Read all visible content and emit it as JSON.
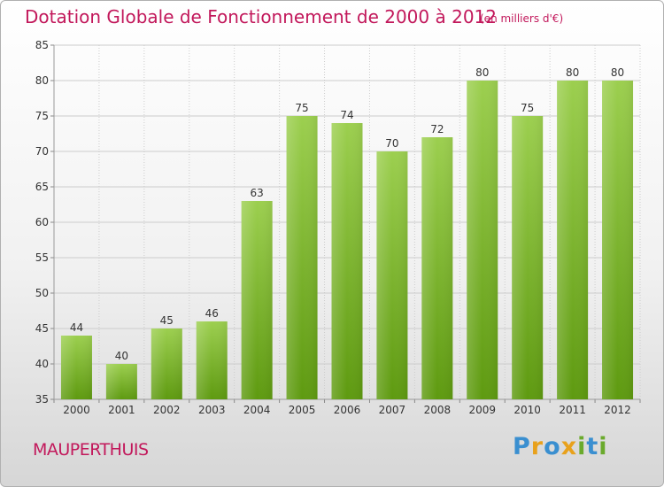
{
  "title": "Dotation Globale de Fonctionnement de 2000 à 2012",
  "subtitle": "(en milliers d'€)",
  "commune": "MAUPERTHUIS",
  "logo": {
    "text": "Proxiti",
    "letters": [
      {
        "char": "P",
        "color": "#3a8fd0"
      },
      {
        "char": "r",
        "color": "#e8a11c"
      },
      {
        "char": "o",
        "color": "#3a8fd0"
      },
      {
        "char": "x",
        "color": "#e8a11c"
      },
      {
        "char": "i",
        "color": "#6aaa2c"
      },
      {
        "char": "t",
        "color": "#3a8fd0"
      },
      {
        "char": "i",
        "color": "#6aaa2c"
      }
    ]
  },
  "colors": {
    "bar_top": "#9ccf4f",
    "bar_bottom": "#5e9a10",
    "title": "#c2185b",
    "grid": "#cccccc",
    "axis_text": "#333333"
  },
  "chart_data": {
    "type": "bar",
    "title": "Dotation Globale de Fonctionnement de 2000 à 2012",
    "subtitle": "(en milliers d'€)",
    "xlabel": "",
    "ylabel": "",
    "categories": [
      "2000",
      "2001",
      "2002",
      "2003",
      "2004",
      "2005",
      "2006",
      "2007",
      "2008",
      "2009",
      "2010",
      "2011",
      "2012"
    ],
    "values": [
      44,
      40,
      45,
      46,
      63,
      75,
      74,
      70,
      72,
      80,
      75,
      80,
      80
    ],
    "ylim": [
      35,
      85
    ],
    "yticks": [
      35,
      40,
      45,
      50,
      55,
      60,
      65,
      70,
      75,
      80,
      85
    ],
    "grid": true,
    "legend": "none"
  }
}
